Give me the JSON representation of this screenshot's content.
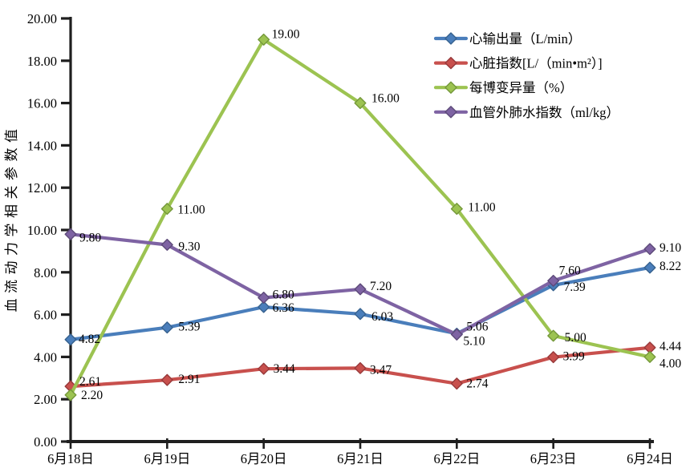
{
  "page": {
    "background": "#ffffff"
  },
  "chart_data": {
    "type": "line",
    "title": "",
    "xlabel": "",
    "ylabel": "血流动力学相关参数值",
    "categories": [
      "6月18日",
      "6月19日",
      "6月20日",
      "6月21日",
      "6月22日",
      "6月23日",
      "6月24日"
    ],
    "series": [
      {
        "name": "心输出量（L/min）",
        "color": "#4A7EBB",
        "marker_border": "#36618E",
        "values": [
          4.82,
          5.39,
          6.36,
          6.03,
          5.1,
          7.39,
          8.22
        ]
      },
      {
        "name": "心脏指数[L/（min•m²）]",
        "color": "#C8504D",
        "marker_border": "#97393A",
        "values": [
          2.61,
          2.91,
          3.44,
          3.47,
          2.74,
          3.99,
          4.44
        ]
      },
      {
        "name": "每博变异量（%）",
        "color": "#9CC351",
        "marker_border": "#74983A",
        "values": [
          2.2,
          11.0,
          19.0,
          16.0,
          11.0,
          5.0,
          4.0
        ]
      },
      {
        "name": "血管外肺水指数（ml/kg）",
        "color": "#7E63A3",
        "marker_border": "#5D4A79",
        "values": [
          9.8,
          9.3,
          6.8,
          7.2,
          5.06,
          7.6,
          9.1
        ]
      }
    ],
    "ylim": [
      0,
      20
    ],
    "ytick_step": 2,
    "ytick_labels": [
      "0.00",
      "2.00",
      "4.00",
      "6.00",
      "8.00",
      "10.00",
      "12.00",
      "14.00",
      "16.00",
      "18.00",
      "20.00"
    ],
    "value_label_decimals": 2,
    "grid": false,
    "legend_position": "top-right",
    "marker": "diamond",
    "axis_color": "#1F1F1F",
    "text_color": "#000000"
  }
}
